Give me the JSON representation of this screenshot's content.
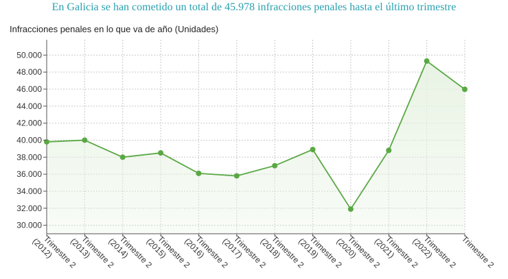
{
  "headline": "En Galicia se han cometido un total de 45.978 infracciones penales hasta el último trimestre",
  "colors": {
    "headline": "#2aa1b0",
    "line": "#5aa844",
    "area": "#e6f2e1"
  },
  "chart_data": {
    "type": "area",
    "title": "Infracciones penales en lo que va de año (Unidades)",
    "xlabel": "",
    "ylabel": "",
    "ylim": [
      29000,
      51800
    ],
    "grid": true,
    "yticks": [
      30000,
      32000,
      34000,
      36000,
      38000,
      40000,
      42000,
      44000,
      46000,
      48000,
      50000
    ],
    "ytick_labels": [
      "30.000",
      "32.000",
      "34.000",
      "36.000",
      "38.000",
      "40.000",
      "42.000",
      "44.000",
      "46.000",
      "48.000",
      "50.000"
    ],
    "categories": [
      [
        "Trimestre 2",
        "(2012)"
      ],
      [
        "Trimestre 2",
        "(2013)"
      ],
      [
        "Trimestre 2",
        "(2014)"
      ],
      [
        "Trimestre 2",
        "(2015)"
      ],
      [
        "Trimestre 2",
        "(2016)"
      ],
      [
        "Trimestre 2",
        "(2017)"
      ],
      [
        "Trimestre 2",
        "(2018)"
      ],
      [
        "Trimestre 2",
        "(2019)"
      ],
      [
        "Trimestre 2",
        "(2020)"
      ],
      [
        "Trimestre 2",
        "(2021)"
      ],
      [
        "Trimestre 2",
        "(2022)"
      ],
      [
        "Trimestre 2",
        ""
      ]
    ],
    "series": [
      {
        "values": [
          39800,
          40000,
          38000,
          38500,
          36100,
          35800,
          37000,
          38900,
          31900,
          38800,
          49300,
          45978
        ]
      }
    ]
  }
}
